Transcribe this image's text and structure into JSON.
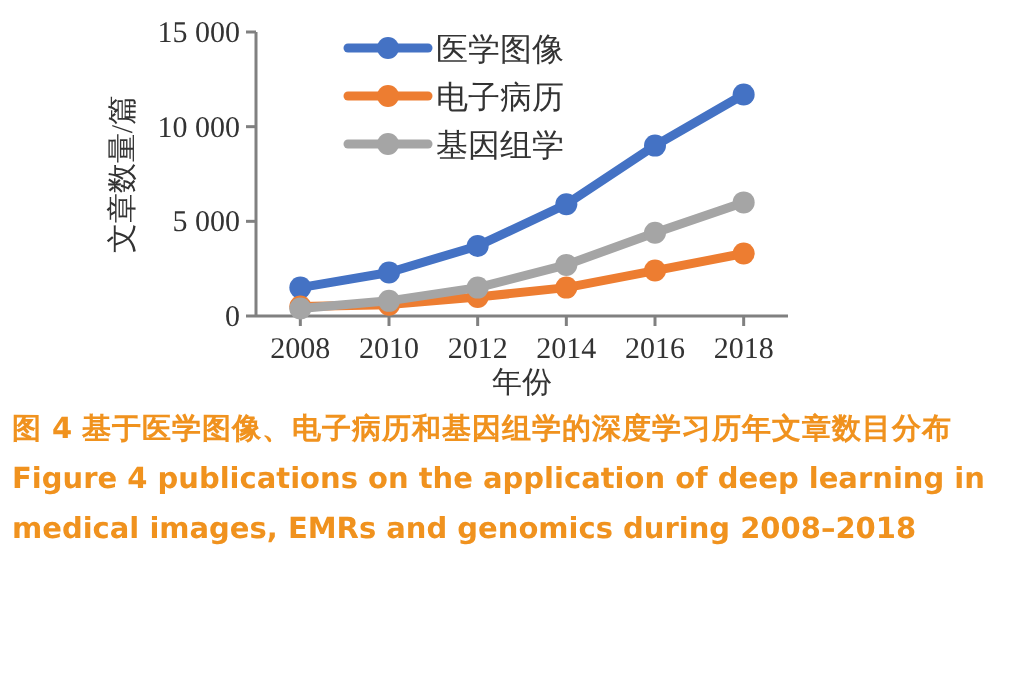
{
  "chart_data": {
    "type": "line",
    "xlabel": "年份",
    "ylabel": "文章数量/篇",
    "x": [
      2008,
      2010,
      2012,
      2014,
      2016,
      2018
    ],
    "xlim": [
      2007,
      2019
    ],
    "xticks": [
      2008,
      2010,
      2012,
      2014,
      2016,
      2018
    ],
    "ylim": [
      0,
      15000
    ],
    "yticks": [
      0,
      {
        "value": 5000,
        "label": "5 000"
      },
      {
        "value": 10000,
        "label": "10 000"
      },
      {
        "value": 15000,
        "label": "15 000"
      }
    ],
    "series": [
      {
        "name": "医学图像",
        "color": "#4472c4",
        "values": [
          1500,
          2300,
          3700,
          5900,
          9000,
          11700
        ]
      },
      {
        "name": "电子病历",
        "color": "#ed7d31",
        "values": [
          500,
          600,
          1000,
          1500,
          2400,
          3300
        ]
      },
      {
        "name": "基因组学",
        "color": "#a5a5a5",
        "values": [
          400,
          800,
          1500,
          2700,
          4400,
          6000
        ]
      }
    ],
    "legend": "top left",
    "marker": "circle",
    "line_style": "solid",
    "grid": false,
    "annotations": [
      "图 4 基于医学图像、电子病历和基因组学的深度学习历年文章数目分布",
      "Figure 4 publications on the application of deep learning in medical images, EMRs and genomics during 2008–2018"
    ]
  }
}
